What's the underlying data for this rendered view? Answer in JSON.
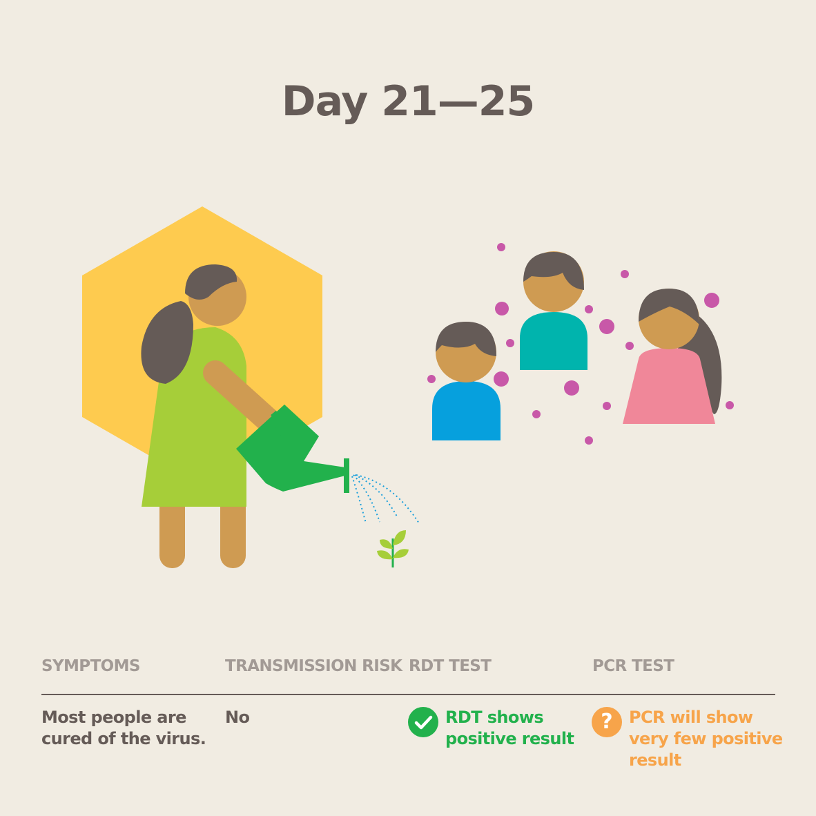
{
  "title": "Day 21—25",
  "colors": {
    "background": "#f1ece2",
    "hexagon": "#fecb4f",
    "hair": "#655b57",
    "skin": "#cf9b52",
    "dress": "#a6ce39",
    "watering_can": "#22b14c",
    "water_spray": "#1a9fdb",
    "virus_particles": "#c858a8",
    "shirt_blue": "#06a0dd",
    "shirt_teal": "#00b4ad",
    "shirt_pink": "#f08799",
    "rdt_positive": "#22b14c",
    "pcr_uncertain": "#f7a44a"
  },
  "table": {
    "headers": [
      "SYMPTOMS",
      "TRANSMISSION RISK",
      "RDT TEST",
      "PCR TEST"
    ],
    "symptoms": "Most people are\ncured of the virus.",
    "transmission": "No",
    "rdt": {
      "icon": "check-circle-icon",
      "text": "RDT shows\npositive result"
    },
    "pcr": {
      "icon": "question-circle-icon",
      "symbol": "?",
      "text": "PCR will show\nvery few positive\nresult"
    }
  }
}
